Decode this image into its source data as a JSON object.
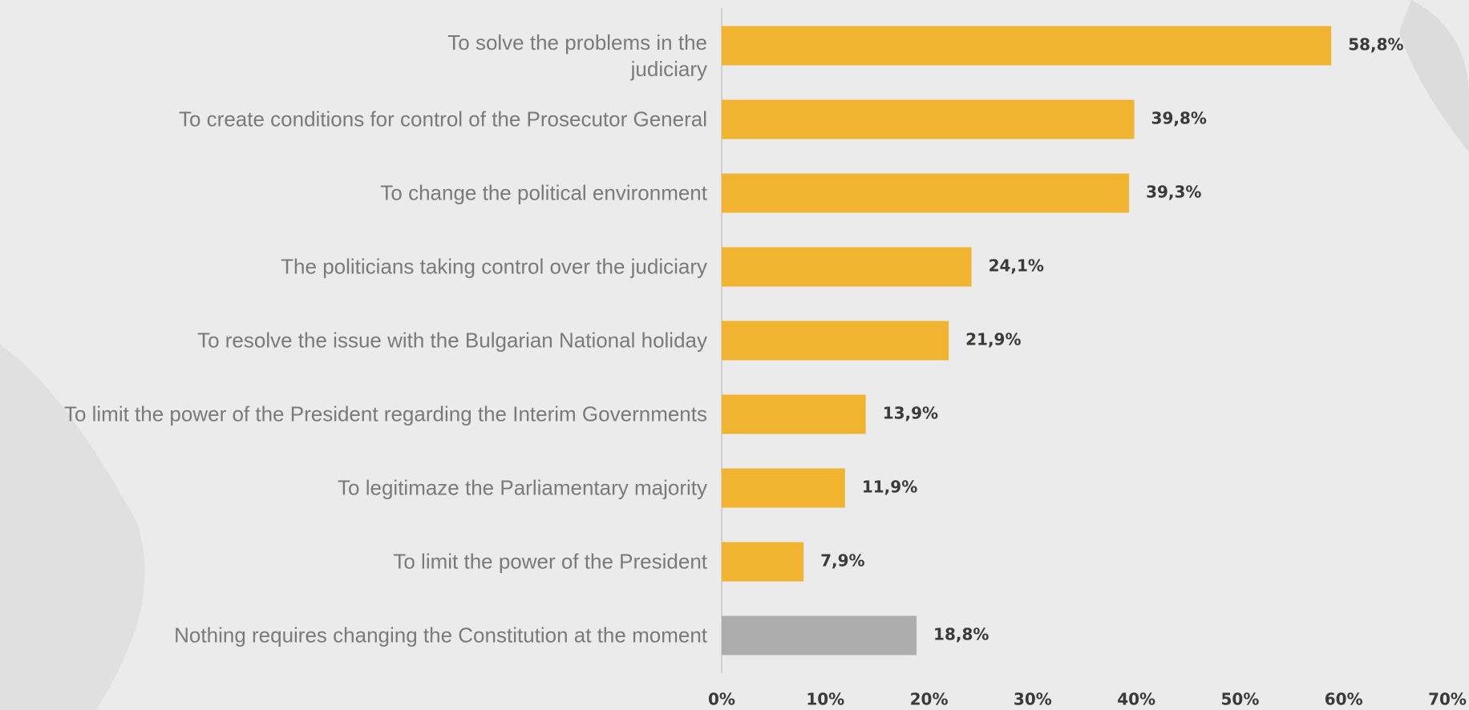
{
  "chart_data": {
    "type": "barh",
    "categories": [
      "To solve the problems in the\njudiciary",
      "To create conditions for control of the Prosecutor General",
      "To change the political environment",
      "The politicians taking control over the judiciary",
      "To resolve the issue with the Bulgarian National holiday",
      "To limit the power of the President regarding the Interim Governments",
      "To legitimaze the Parliamentary majority",
      "To limit the power of the President",
      "Nothing requires changing the Constitution at the moment"
    ],
    "values": [
      58.8,
      39.8,
      39.3,
      24.1,
      21.9,
      13.9,
      11.9,
      7.9,
      18.8
    ],
    "value_labels": [
      "58,8%",
      "39,8%",
      "39,3%",
      "24,1%",
      "21,9%",
      "13,9%",
      "11,9%",
      "7,9%",
      "18,8%"
    ],
    "colors": [
      "#f0b430",
      "#f0b430",
      "#f0b430",
      "#f0b430",
      "#f0b430",
      "#f0b430",
      "#f0b430",
      "#f0b430",
      "#adadad"
    ],
    "xlim": [
      0,
      70
    ],
    "xticks": [
      {
        "value": 0,
        "label": "0%"
      },
      {
        "value": 10,
        "label": "10%"
      },
      {
        "value": 20,
        "label": "20%"
      },
      {
        "value": 30,
        "label": "30%"
      },
      {
        "value": 40,
        "label": "40%"
      },
      {
        "value": 50,
        "label": "50%"
      },
      {
        "value": 60,
        "label": "60%"
      },
      {
        "value": 70,
        "label": "70%"
      }
    ]
  }
}
